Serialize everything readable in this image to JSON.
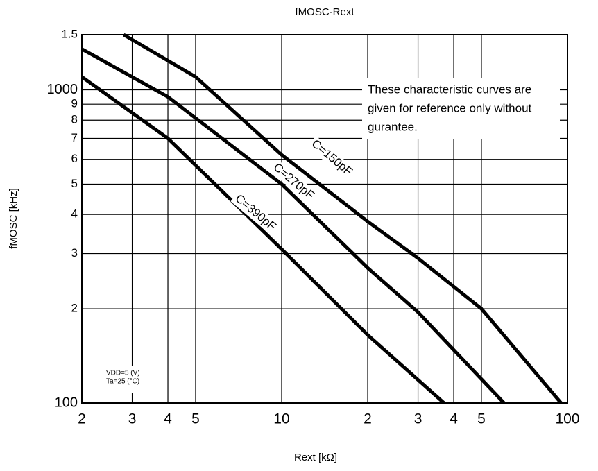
{
  "chart_data": {
    "type": "line",
    "title": "fMOSC-Rext",
    "x_label": "Rext [kΩ]",
    "y_label": "fMOSC [kHz]",
    "xscale": "log",
    "yscale": "log",
    "grid": true,
    "xlim": [
      2,
      100
    ],
    "ylim": [
      100,
      1500
    ],
    "xticks": [
      2,
      3,
      4,
      5,
      10,
      {
        "value": 20,
        "label": "2"
      },
      {
        "value": 30,
        "label": "3"
      },
      {
        "value": 40,
        "label": "4"
      },
      {
        "value": 50,
        "label": "5"
      },
      100
    ],
    "yticks": [
      100,
      {
        "value": 200,
        "label": "2"
      },
      {
        "value": 300,
        "label": "3"
      },
      {
        "value": 400,
        "label": "4"
      },
      {
        "value": 500,
        "label": "5"
      },
      {
        "value": 600,
        "label": "6"
      },
      {
        "value": 700,
        "label": "7"
      },
      {
        "value": 800,
        "label": "8"
      },
      {
        "value": 900,
        "label": "9"
      },
      1000,
      {
        "value": 1500,
        "label": "1.5"
      }
    ],
    "series": [
      {
        "name": "C=150pF",
        "color": "#000000",
        "x": [
          2.8,
          5,
          10,
          20,
          30,
          50,
          95
        ],
        "values": [
          1500,
          1100,
          620,
          380,
          290,
          200,
          100
        ]
      },
      {
        "name": "C=270pF",
        "color": "#000000",
        "x": [
          2,
          4,
          10,
          20,
          30,
          60
        ],
        "values": [
          1350,
          950,
          500,
          270,
          195,
          100
        ]
      },
      {
        "name": "C=390pF",
        "color": "#000000",
        "x": [
          2,
          4,
          10,
          20,
          37
        ],
        "values": [
          1100,
          700,
          310,
          165,
          100
        ]
      }
    ],
    "annotation": [
      "These characteristic curves are",
      "given for reference only without",
      "gurantee."
    ],
    "conditions": [
      "VDD=5 (V)",
      "Ta=25 (°C)"
    ]
  }
}
